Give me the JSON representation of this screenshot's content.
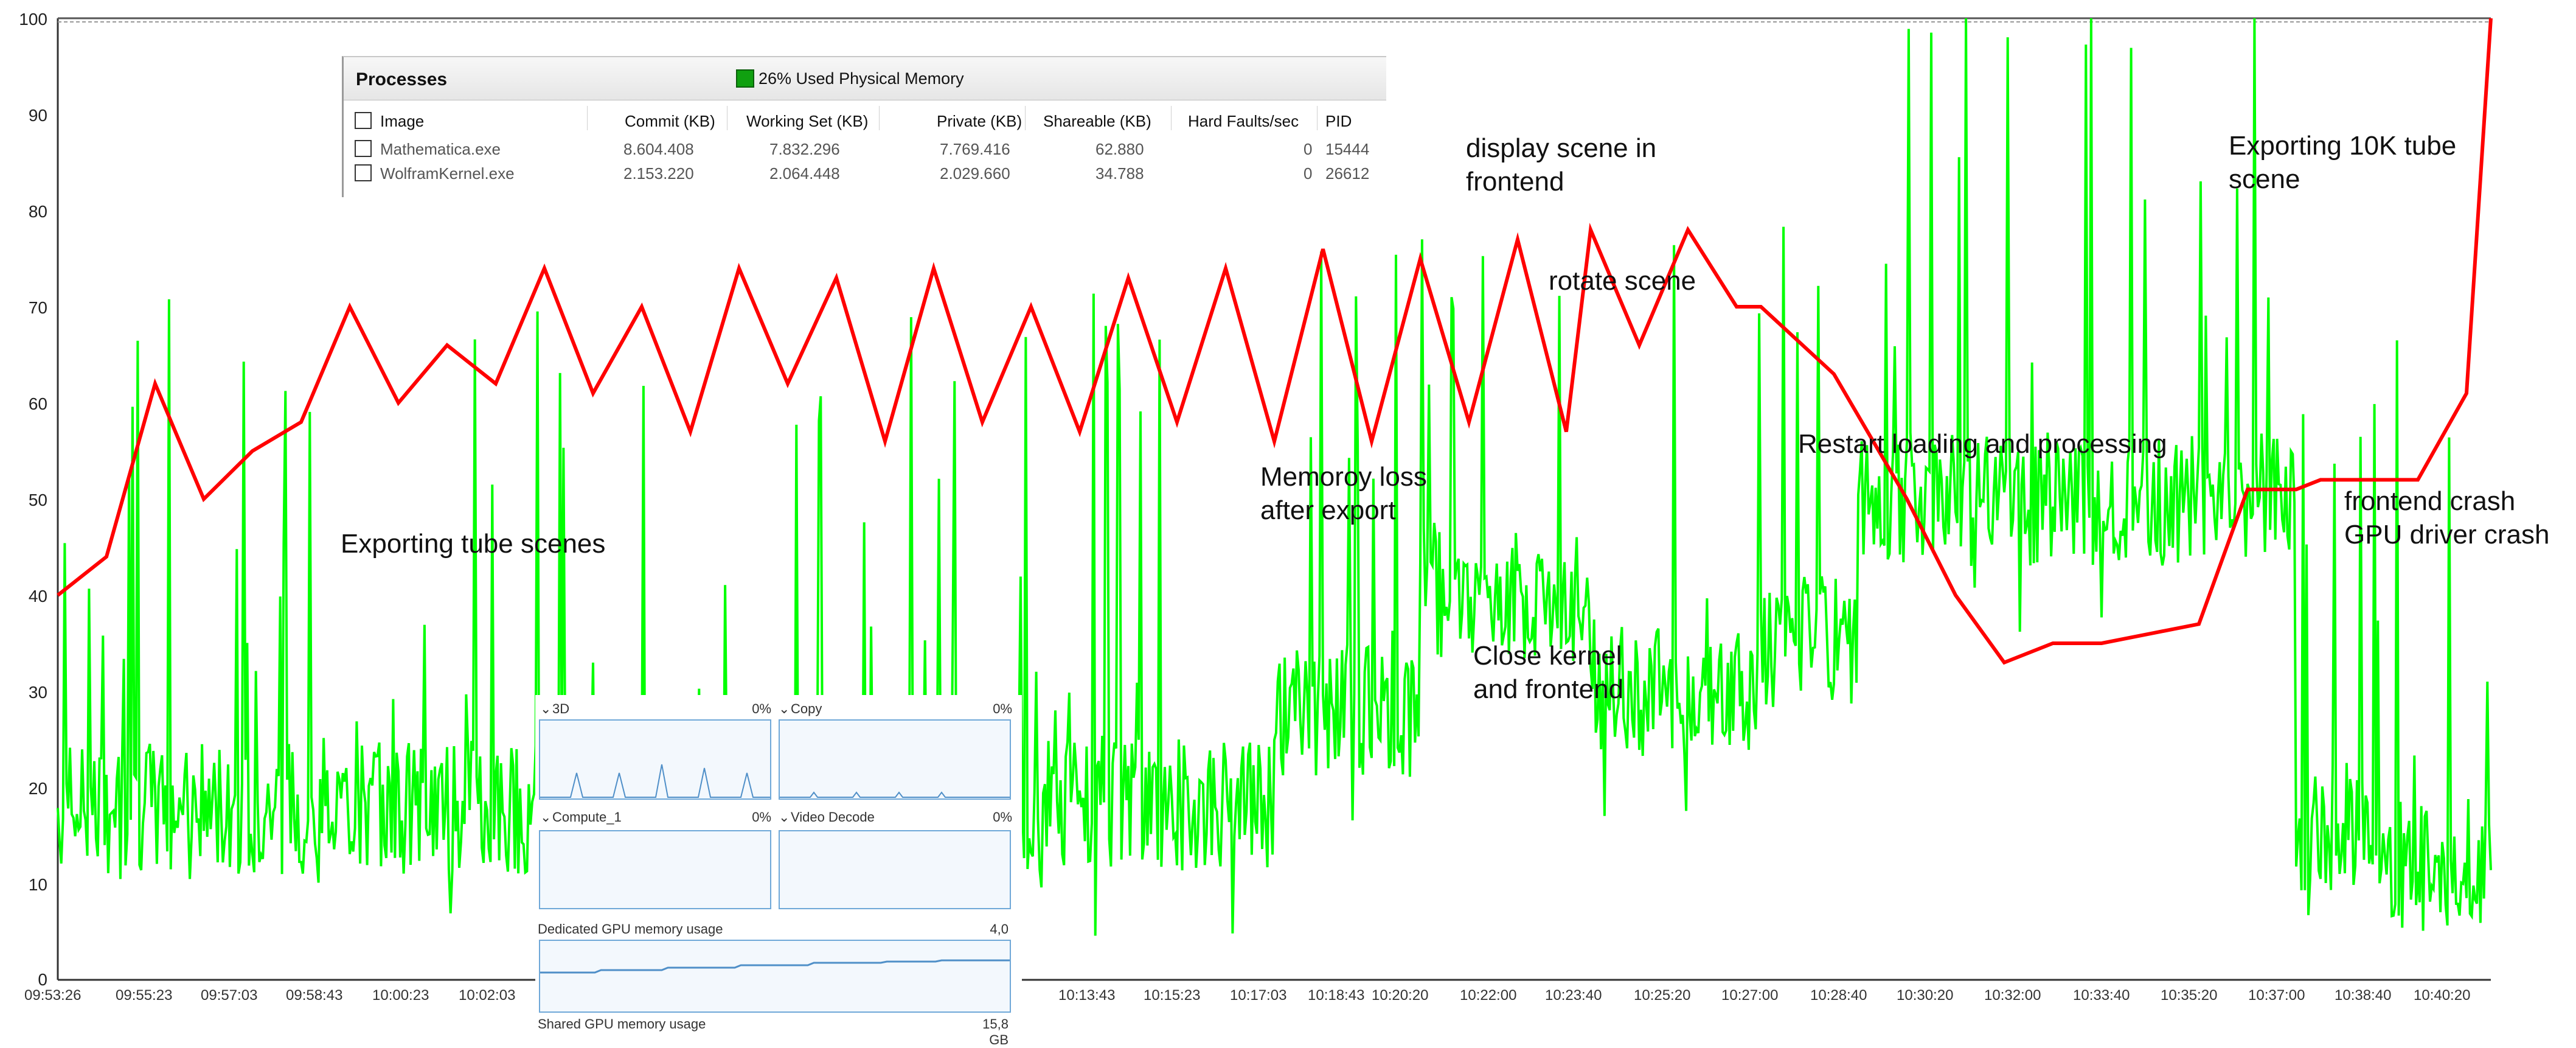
{
  "yaxis": {
    "ticks": [
      "100",
      "90",
      "80",
      "70",
      "60",
      "50",
      "40",
      "30",
      "20",
      "10",
      "0"
    ]
  },
  "xaxis": {
    "ticks": [
      "09:53:26",
      "09:55:23",
      "09:57:03",
      "09:58:43",
      "10:00:23",
      "10:02:03",
      "10:13:43",
      "10:15:23",
      "10:17:03",
      "10:18:43",
      "10:20:20",
      "10:22:00",
      "10:23:40",
      "10:25:20",
      "10:27:00",
      "10:28:40",
      "10:30:20",
      "10:32:00",
      "10:33:40",
      "10:35:20",
      "10:37:00",
      "10:38:40",
      "10:40:20"
    ]
  },
  "annotations": {
    "exporting_tube": "Exporting tube scenes",
    "memory_loss": "Memoroy loss\nafter export",
    "display_scene": "display scene in\nfrontend",
    "rotate_scene": "rotate scene",
    "close_kernel": "Close kernel\nand frontend",
    "restart": "Restart loading and processing",
    "exporting_10k": "Exporting 10K tube\nscene",
    "frontend_crash": "frontend crash\nGPU driver crash"
  },
  "processes": {
    "title": "Processes",
    "memory_label": "26% Used Physical Memory",
    "columns": [
      "Image",
      "Commit (KB)",
      "Working Set (KB)",
      "Private (KB)",
      "Shareable (KB)",
      "Hard Faults/sec",
      "PID"
    ],
    "rows": [
      [
        "Mathematica.exe",
        "8.604.408",
        "7.832.296",
        "7.769.416",
        "62.880",
        "0",
        "15444"
      ],
      [
        "WolframKernel.exe",
        "2.153.220",
        "2.064.448",
        "2.029.660",
        "34.788",
        "0",
        "26612"
      ]
    ]
  },
  "gpu": {
    "engines": [
      {
        "name": "3D",
        "pct": "0%"
      },
      {
        "name": "Copy",
        "pct": "0%"
      },
      {
        "name": "Compute_1",
        "pct": "0%"
      },
      {
        "name": "Video Decode",
        "pct": "0%"
      }
    ],
    "dedicated_label": "Dedicated GPU memory usage",
    "dedicated_value": "4,0 GB",
    "shared_label": "Shared GPU memory usage",
    "shared_value": "15,8 GB"
  },
  "colors": {
    "green": "#00ff00",
    "red": "#ff0000",
    "axis": "#333333",
    "gpu_line": "#4f8fc8"
  },
  "chart_data": {
    "type": "line",
    "ylim": [
      0,
      100
    ],
    "grid": false,
    "series": [
      {
        "color": "#ff0000",
        "x": [
          0,
          2,
          4,
          6,
          8,
          10,
          12,
          14,
          16,
          18,
          20,
          22,
          24,
          26,
          28,
          30,
          32,
          34,
          36,
          38,
          40,
          42,
          44,
          46,
          48,
          50,
          52,
          54,
          56,
          58,
          60,
          62,
          63,
          65,
          67,
          69,
          70,
          73,
          76,
          78,
          80,
          82,
          84,
          86,
          88,
          90,
          92,
          93,
          94,
          95,
          97,
          99,
          100
        ],
        "values": [
          40,
          44,
          62,
          50,
          55,
          58,
          70,
          60,
          66,
          62,
          74,
          61,
          70,
          57,
          74,
          62,
          73,
          56,
          74,
          58,
          70,
          57,
          73,
          58,
          74,
          56,
          76,
          56,
          75,
          58,
          77,
          57,
          78,
          66,
          78,
          70,
          70,
          63,
          50,
          40,
          33,
          35,
          35,
          36,
          37,
          51,
          51,
          52,
          52,
          52,
          52,
          61,
          100
        ]
      }
    ]
  }
}
